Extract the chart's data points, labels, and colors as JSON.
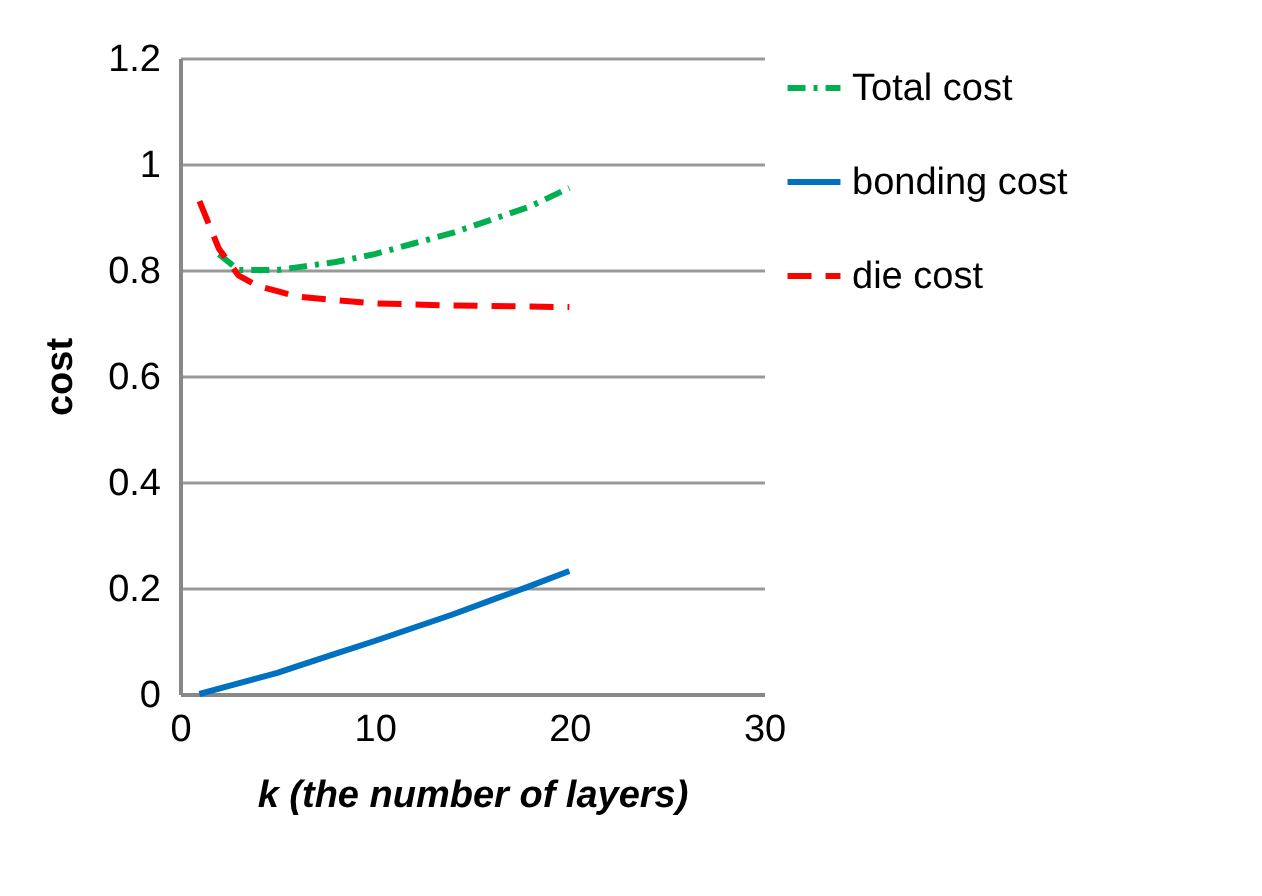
{
  "chart_data": {
    "type": "line",
    "xlabel": "k (the number of layers)",
    "ylabel": "cost",
    "x": [
      1,
      2,
      3,
      4,
      5,
      6,
      8,
      10,
      12,
      14,
      16,
      18,
      20
    ],
    "series": [
      {
        "name": "Total cost",
        "color": "#00b050",
        "line_style": "dashdot",
        "values": [
          null,
          0.83,
          0.8,
          0.8,
          0.8,
          0.805,
          0.815,
          0.83,
          0.85,
          0.87,
          0.895,
          0.92,
          0.955
        ]
      },
      {
        "name": "bonding cost",
        "color": "#0070c0",
        "line_style": "solid",
        "values": [
          0,
          0.01,
          0.02,
          0.03,
          0.04,
          0.052,
          0.076,
          0.1,
          0.125,
          0.15,
          0.177,
          0.204,
          0.232
        ]
      },
      {
        "name": "die cost",
        "color": "#ff0000",
        "line_style": "dashed",
        "values": [
          0.93,
          0.84,
          0.79,
          0.77,
          0.76,
          0.75,
          0.743,
          0.737,
          0.735,
          0.733,
          0.732,
          0.731,
          0.73
        ]
      }
    ],
    "xlim": [
      0,
      30
    ],
    "xticks": [
      0,
      10,
      20,
      30
    ],
    "ylim": [
      0,
      1.2
    ],
    "yticks": [
      0,
      0.2,
      0.4,
      0.6,
      0.8,
      1,
      1.2
    ],
    "grid": "y",
    "legend": "right",
    "marker": "none"
  }
}
